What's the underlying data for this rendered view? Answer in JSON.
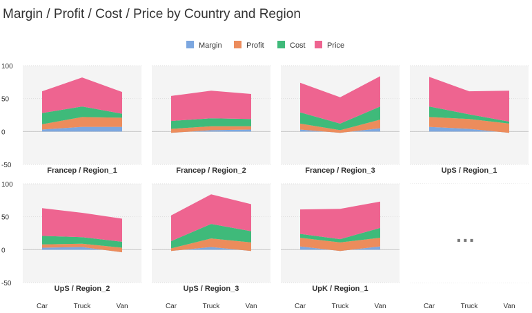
{
  "title": "Margin / Profit / Cost / Price by Country and Region",
  "more_indicator": "···",
  "chart_data": {
    "type": "area",
    "stacked": true,
    "layout": "small-multiples",
    "categories": [
      "Car",
      "Truck",
      "Van"
    ],
    "ylim": [
      -50,
      100
    ],
    "y_ticks": [
      100,
      50,
      0,
      -50
    ],
    "grid": true,
    "legend_position": "top-center",
    "legend": [
      {
        "name": "Margin",
        "color": "#7ca7e0"
      },
      {
        "name": "Profit",
        "color": "#ec8c5c"
      },
      {
        "name": "Cost",
        "color": "#3fba7a"
      },
      {
        "name": "Price",
        "color": "#ee6490"
      }
    ],
    "panels": [
      {
        "label": "Francep / Region_1",
        "series": {
          "Margin": [
            3,
            7,
            7
          ],
          "Profit": [
            8,
            15,
            14
          ],
          "Cost": [
            17,
            16,
            6
          ],
          "Price": [
            33,
            44,
            33
          ]
        }
      },
      {
        "label": "Francep / Region_2",
        "series": {
          "Margin": [
            -2,
            2,
            3
          ],
          "Profit": [
            6,
            6,
            5
          ],
          "Cost": [
            12,
            12,
            11
          ],
          "Price": [
            38,
            42,
            38
          ]
        }
      },
      {
        "label": "Francep / Region_3",
        "series": {
          "Margin": [
            3,
            -2,
            5
          ],
          "Profit": [
            9,
            4,
            13
          ],
          "Cost": [
            17,
            10,
            20
          ],
          "Price": [
            45,
            40,
            46
          ]
        }
      },
      {
        "label": "UpS / Region_1",
        "series": {
          "Margin": [
            7,
            4,
            -2
          ],
          "Profit": [
            15,
            15,
            14
          ],
          "Cost": [
            16,
            7,
            3
          ],
          "Price": [
            45,
            35,
            47
          ]
        }
      },
      {
        "label": "UpS / Region_2",
        "series": {
          "Margin": [
            3,
            4,
            -4
          ],
          "Profit": [
            5,
            5,
            7
          ],
          "Cost": [
            13,
            10,
            9
          ],
          "Price": [
            42,
            37,
            35
          ]
        }
      },
      {
        "label": "UpS / Region_3",
        "series": {
          "Margin": [
            -2,
            4,
            -2
          ],
          "Profit": [
            4,
            13,
            13
          ],
          "Cost": [
            11,
            22,
            17
          ],
          "Price": [
            39,
            45,
            41
          ]
        }
      },
      {
        "label": "UpK / Region_1",
        "series": {
          "Margin": [
            5,
            -2,
            5
          ],
          "Profit": [
            13,
            13,
            13
          ],
          "Cost": [
            6,
            5,
            15
          ],
          "Price": [
            37,
            46,
            40
          ]
        }
      }
    ]
  }
}
